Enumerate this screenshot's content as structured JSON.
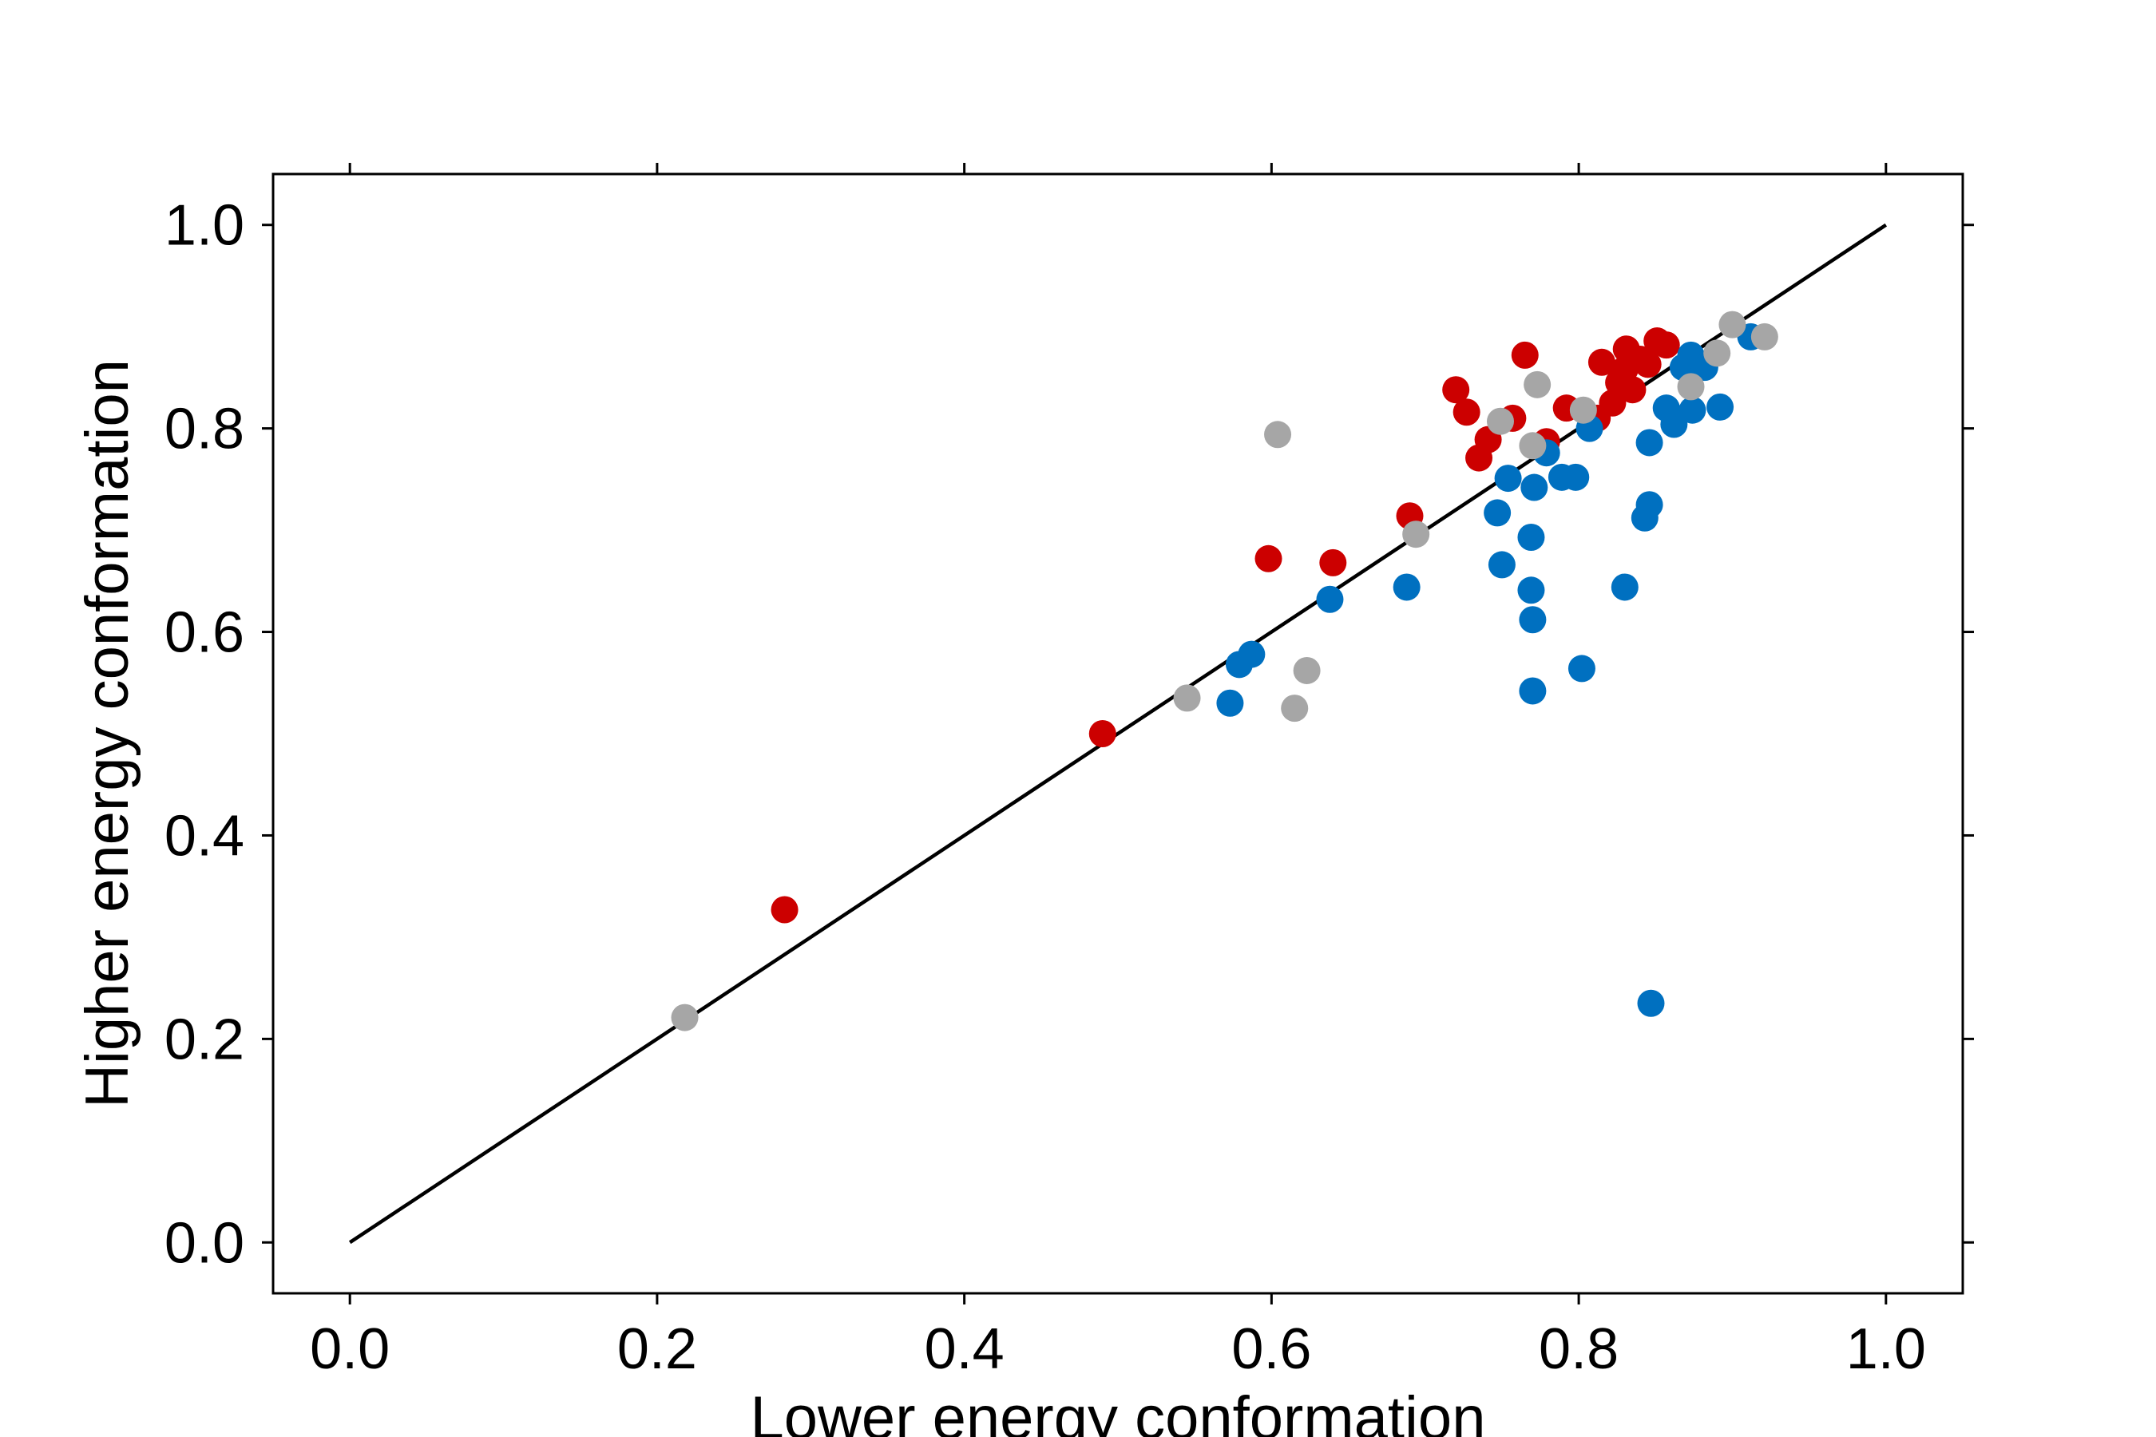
{
  "chart_data": {
    "type": "scatter",
    "xlabel": "Lower energy conformation",
    "ylabel": "Higher energy conformation",
    "xlim": [
      -0.05,
      1.05
    ],
    "ylim": [
      -0.05,
      1.05
    ],
    "xticks": [
      "0.0",
      "0.2",
      "0.4",
      "0.6",
      "0.8",
      "1.0"
    ],
    "yticks": [
      "0.0",
      "0.2",
      "0.4",
      "0.6",
      "0.8",
      "1.0"
    ],
    "grid": false,
    "legend": "none",
    "reference_line": {
      "x": [
        0,
        1
      ],
      "y": [
        0,
        1
      ],
      "color": "#000000"
    },
    "series": [
      {
        "color": "#cc0000",
        "points": [
          [
            0.283,
            0.327
          ],
          [
            0.49,
            0.5
          ],
          [
            0.598,
            0.672
          ],
          [
            0.64,
            0.668
          ],
          [
            0.69,
            0.714
          ],
          [
            0.72,
            0.838
          ],
          [
            0.727,
            0.816
          ],
          [
            0.735,
            0.771
          ],
          [
            0.741,
            0.789
          ],
          [
            0.757,
            0.81
          ],
          [
            0.765,
            0.872
          ],
          [
            0.779,
            0.787
          ],
          [
            0.792,
            0.82
          ],
          [
            0.812,
            0.81
          ],
          [
            0.815,
            0.865
          ],
          [
            0.822,
            0.825
          ],
          [
            0.826,
            0.845
          ],
          [
            0.831,
            0.878
          ],
          [
            0.835,
            0.838
          ],
          [
            0.84,
            0.868
          ],
          [
            0.845,
            0.863
          ],
          [
            0.851,
            0.886
          ],
          [
            0.857,
            0.882
          ],
          [
            0.83,
            0.858
          ]
        ]
      },
      {
        "color": "#0070c0",
        "points": [
          [
            0.573,
            0.53
          ],
          [
            0.579,
            0.568
          ],
          [
            0.587,
            0.578
          ],
          [
            0.638,
            0.632
          ],
          [
            0.688,
            0.644
          ],
          [
            0.747,
            0.717
          ],
          [
            0.75,
            0.666
          ],
          [
            0.754,
            0.751
          ],
          [
            0.769,
            0.693
          ],
          [
            0.769,
            0.641
          ],
          [
            0.77,
            0.612
          ],
          [
            0.77,
            0.542
          ],
          [
            0.771,
            0.742
          ],
          [
            0.779,
            0.776
          ],
          [
            0.789,
            0.752
          ],
          [
            0.798,
            0.752
          ],
          [
            0.802,
            0.564
          ],
          [
            0.807,
            0.8
          ],
          [
            0.83,
            0.644
          ],
          [
            0.843,
            0.712
          ],
          [
            0.846,
            0.786
          ],
          [
            0.846,
            0.725
          ],
          [
            0.847,
            0.235
          ],
          [
            0.857,
            0.82
          ],
          [
            0.862,
            0.804
          ],
          [
            0.868,
            0.86
          ],
          [
            0.873,
            0.872
          ],
          [
            0.874,
            0.818
          ],
          [
            0.882,
            0.86
          ],
          [
            0.892,
            0.821
          ],
          [
            0.912,
            0.89
          ]
        ]
      },
      {
        "color": "#a6a6a6",
        "points": [
          [
            0.218,
            0.221
          ],
          [
            0.545,
            0.535
          ],
          [
            0.604,
            0.794
          ],
          [
            0.615,
            0.525
          ],
          [
            0.623,
            0.562
          ],
          [
            0.694,
            0.696
          ],
          [
            0.749,
            0.807
          ],
          [
            0.77,
            0.783
          ],
          [
            0.773,
            0.843
          ],
          [
            0.803,
            0.818
          ],
          [
            0.873,
            0.841
          ],
          [
            0.89,
            0.874
          ],
          [
            0.9,
            0.902
          ],
          [
            0.921,
            0.89
          ]
        ]
      }
    ]
  }
}
